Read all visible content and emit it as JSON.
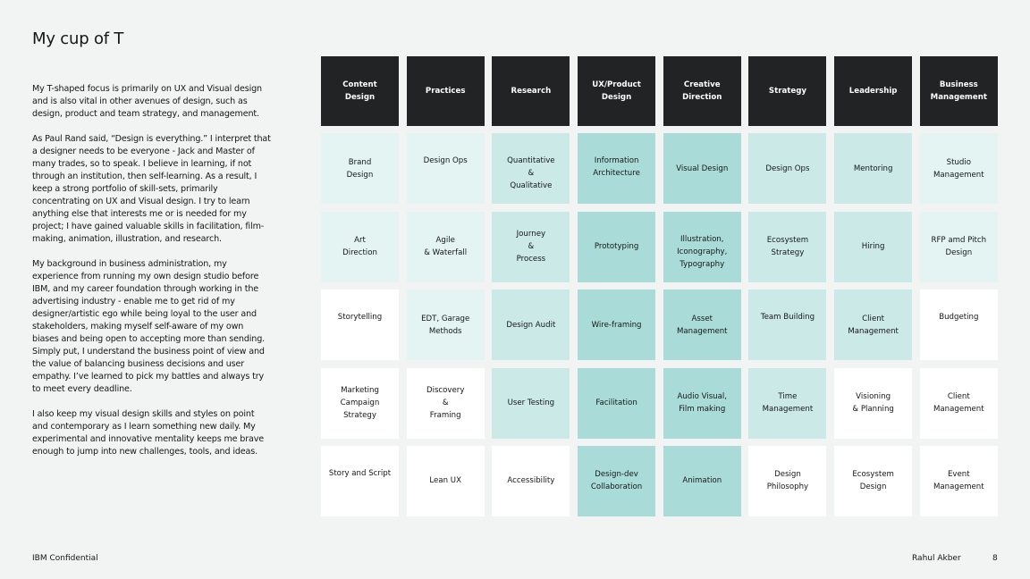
{
  "slide": {
    "title": "My cup of T",
    "paragraphs": [
      "My T-shaped focus is primarily on UX and Visual design and is also vital in other avenues of design, such as design, product and team strategy, and management.",
      "As Paul Rand said, “Design is everything.” I interpret that a designer needs to be everyone - Jack and Master of many trades, so to speak. I believe in learning, if not through an institution, then self-learning. As a result, I keep a strong portfolio of skill-sets, primarily concentrating on UX and Visual design. I try to learn anything else that interests me or is needed for my project; I have gained valuable skills in facilitation, film-making, animation, illustration, and research.",
      "My background in business administration, my experience from running my own design studio before IBM, and my career foundation through working in the advertising industry - enable me to get rid of my designer/artistic ego while being loyal to the user and stakeholders, making myself self-aware of my own biases and being open to accepting more than sending. Simply put, I understand the business point of view and the value of balancing business decisions and user empathy. I’ve learned to pick my battles and always try to meet every deadline.",
      "I also keep my visual design skills and styles on point and contemporary as I learn something new daily. My experimental and innovative mentality keeps me brave enough to jump into new challenges, tools, and ideas."
    ]
  },
  "colors": {
    "header": "#222324",
    "level1": "#ffffff",
    "level2": "#e3f4f3",
    "level3": "#cae9e7",
    "level4": "#a9dcd8"
  },
  "grid": {
    "headers": [
      "Content\nDesign",
      "Practices",
      "Research",
      "UX/Product\nDesign",
      "Creative\nDirection",
      "Strategy",
      "Leadership",
      "Business\nManagement"
    ],
    "rows": [
      [
        {
          "text": "Brand\nDesign",
          "level": 2
        },
        {
          "text": "Design Ops",
          "level": 2,
          "valign": "top"
        },
        {
          "text": "Quantitative\n&\nQualitative",
          "level": 3,
          "valign": "top"
        },
        {
          "text": "Information\nArchitecture",
          "level": 4,
          "valign": "top"
        },
        {
          "text": "Visual Design",
          "level": 4
        },
        {
          "text": "Design Ops",
          "level": 3
        },
        {
          "text": "Mentoring",
          "level": 3
        },
        {
          "text": "Studio\nManagement",
          "level": 2
        }
      ],
      [
        {
          "text": "Art\nDirection",
          "level": 2
        },
        {
          "text": "Agile\n& Waterfall",
          "level": 2
        },
        {
          "text": "Journey\n&\nProcess",
          "level": 3
        },
        {
          "text": "Prototyping",
          "level": 4
        },
        {
          "text": "Illustration,\nIconography,\nTypography",
          "level": 4,
          "valign": "top"
        },
        {
          "text": "Ecosystem\nStrategy",
          "level": 3
        },
        {
          "text": "Hiring",
          "level": 3
        },
        {
          "text": "RFP amd Pitch\nDesign",
          "level": 2
        }
      ],
      [
        {
          "text": "Storytelling",
          "level": 1,
          "valign": "top"
        },
        {
          "text": "EDT, Garage\nMethods",
          "level": 2
        },
        {
          "text": "Design Audit",
          "level": 3
        },
        {
          "text": "Wire-framing",
          "level": 4
        },
        {
          "text": "Asset\nManagement",
          "level": 4
        },
        {
          "text": "Team Building",
          "level": 3,
          "valign": "top"
        },
        {
          "text": "Client\nManagement",
          "level": 3
        },
        {
          "text": "Budgeting",
          "level": 1,
          "valign": "top"
        }
      ],
      [
        {
          "text": "Marketing\nCampaign\nStrategy",
          "level": 1
        },
        {
          "text": "Discovery\n&\nFraming",
          "level": 1
        },
        {
          "text": "User Testing",
          "level": 3
        },
        {
          "text": "Facilitation",
          "level": 4
        },
        {
          "text": "Audio Visual,\nFilm making",
          "level": 4
        },
        {
          "text": "Time\nManagement",
          "level": 3
        },
        {
          "text": "Visioning\n& Planning",
          "level": 1
        },
        {
          "text": "Client\nManagement",
          "level": 1
        }
      ],
      [
        {
          "text": "Story and Script",
          "level": 1,
          "valign": "top"
        },
        {
          "text": "Lean UX",
          "level": 1
        },
        {
          "text": "Accessibility",
          "level": 1
        },
        {
          "text": "Design-dev\nCollaboration",
          "level": 4
        },
        {
          "text": "Animation",
          "level": 4
        },
        {
          "text": "Design\nPhilosophy",
          "level": 1
        },
        {
          "text": "Ecosystem\nDesign",
          "level": 1
        },
        {
          "text": "Event\nManagement",
          "level": 1
        }
      ]
    ]
  },
  "footer": {
    "confidential": "IBM Confidential",
    "author": "Rahul Akber",
    "page_number": "8"
  }
}
